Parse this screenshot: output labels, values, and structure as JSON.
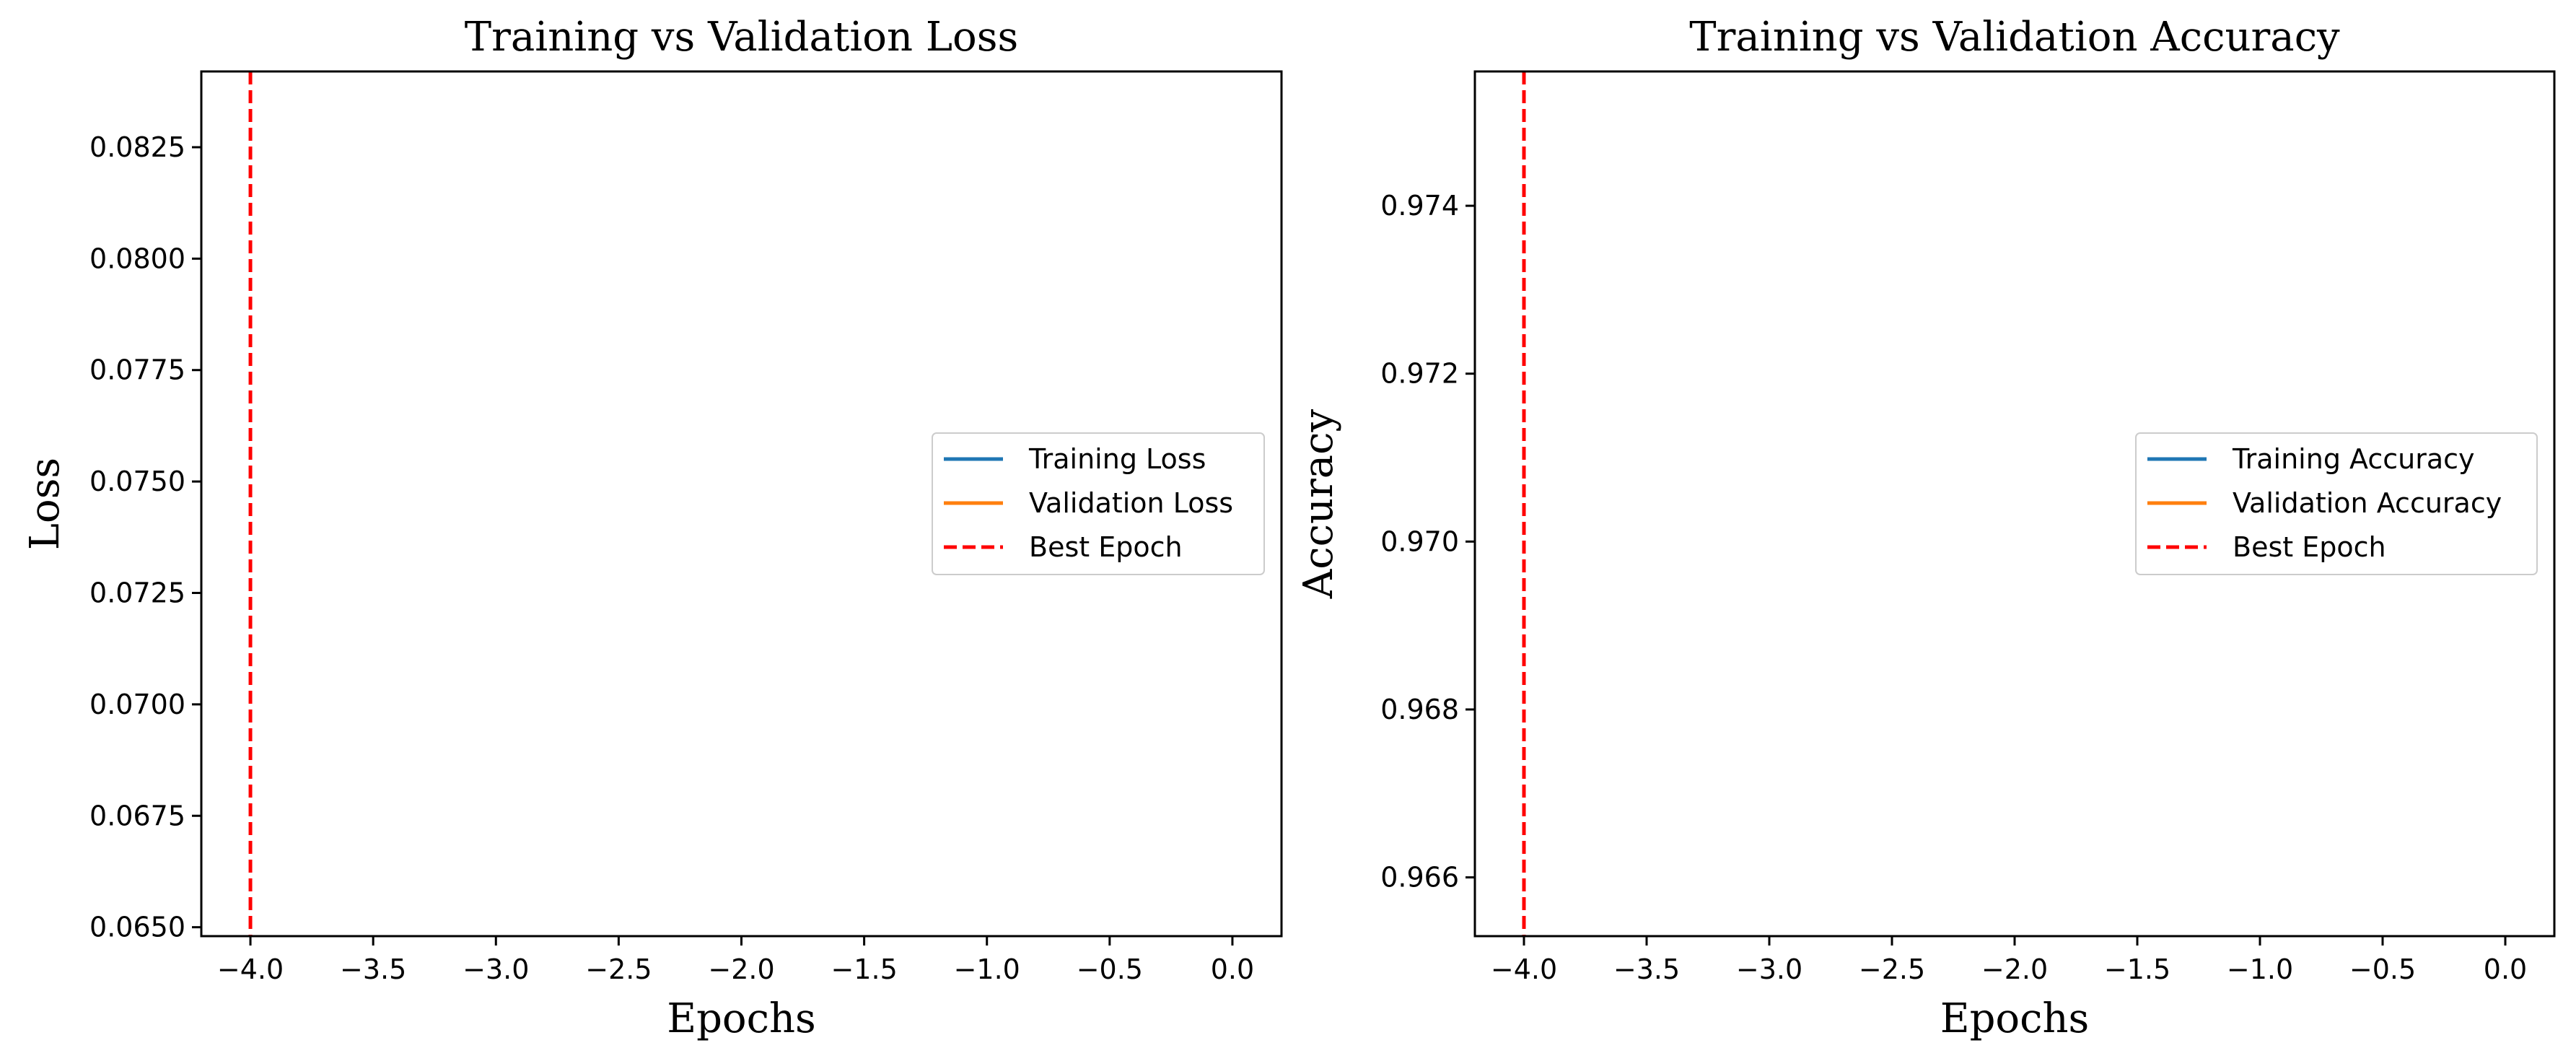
{
  "chart_data": [
    {
      "type": "line",
      "title": "Training vs Validation Loss",
      "xlabel": "Epochs",
      "ylabel": "Loss",
      "xlim": [
        -4.2,
        0.2
      ],
      "ylim": [
        0.0648,
        0.0842
      ],
      "x_ticks": [
        -4.0,
        -3.5,
        -3.0,
        -2.5,
        -2.0,
        -1.5,
        -1.0,
        -0.5,
        0.0
      ],
      "x_tick_labels": [
        "−4.0",
        "−3.5",
        "−3.0",
        "−2.5",
        "−2.0",
        "−1.5",
        "−1.0",
        "−0.5",
        "0.0"
      ],
      "y_ticks": [
        0.065,
        0.0675,
        0.07,
        0.0725,
        0.075,
        0.0775,
        0.08,
        0.0825
      ],
      "y_tick_labels": [
        "0.0650",
        "0.0675",
        "0.0700",
        "0.0725",
        "0.0750",
        "0.0775",
        "0.0800",
        "0.0825"
      ],
      "grid": false,
      "legend_position": "center-right",
      "series": [
        {
          "name": "Training Loss",
          "x": [],
          "values": [],
          "color": "#1f77b4",
          "style": "solid"
        },
        {
          "name": "Validation Loss",
          "x": [],
          "values": [],
          "color": "#ff7f0e",
          "style": "solid"
        },
        {
          "name": "Best Epoch",
          "kind": "vline",
          "x": -4.0,
          "color": "#ff0000",
          "style": "dashed"
        }
      ]
    },
    {
      "type": "line",
      "title": "Training vs Validation Accuracy",
      "xlabel": "Epochs",
      "ylabel": "Accuracy",
      "xlim": [
        -4.2,
        0.2
      ],
      "ylim": [
        0.9653,
        0.9756
      ],
      "x_ticks": [
        -4.0,
        -3.5,
        -3.0,
        -2.5,
        -2.0,
        -1.5,
        -1.0,
        -0.5,
        0.0
      ],
      "x_tick_labels": [
        "−4.0",
        "−3.5",
        "−3.0",
        "−2.5",
        "−2.0",
        "−1.5",
        "−1.0",
        "−0.5",
        "0.0"
      ],
      "y_ticks": [
        0.966,
        0.968,
        0.97,
        0.972,
        0.974
      ],
      "y_tick_labels": [
        "0.966",
        "0.968",
        "0.970",
        "0.972",
        "0.974"
      ],
      "grid": false,
      "legend_position": "center-right",
      "series": [
        {
          "name": "Training Accuracy",
          "x": [],
          "values": [],
          "color": "#1f77b4",
          "style": "solid"
        },
        {
          "name": "Validation Accuracy",
          "x": [],
          "values": [],
          "color": "#ff7f0e",
          "style": "solid"
        },
        {
          "name": "Best Epoch",
          "kind": "vline",
          "x": -4.0,
          "color": "#ff0000",
          "style": "dashed"
        }
      ]
    }
  ]
}
